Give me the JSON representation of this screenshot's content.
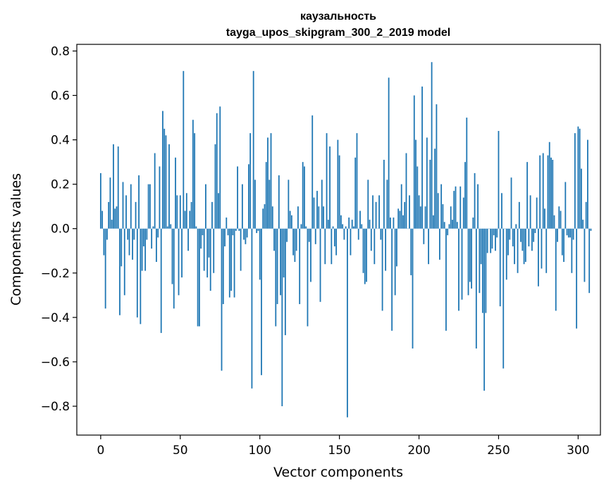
{
  "chart_data": {
    "type": "bar",
    "title": "каузальность",
    "subtitle": "tayga_upos_skipgram_300_2_2019 model",
    "xlabel": "Vector components",
    "ylabel": "Components values",
    "xlim": [
      -15,
      314
    ],
    "ylim": [
      -0.93,
      0.83
    ],
    "xticks": [
      0,
      50,
      100,
      150,
      200,
      250,
      300
    ],
    "xtick_labels": [
      "0",
      "50",
      "100",
      "150",
      "200",
      "250",
      "300"
    ],
    "yticks": [
      -0.8,
      -0.6,
      -0.4,
      -0.2,
      0.0,
      0.2,
      0.4,
      0.6,
      0.8
    ],
    "ytick_labels": [
      "−0.8",
      "−0.6",
      "−0.4",
      "−0.2",
      "0.0",
      "0.2",
      "0.4",
      "0.6",
      "0.8"
    ],
    "color": "#1f77b4",
    "values": [
      0.25,
      0.08,
      -0.12,
      -0.36,
      -0.05,
      0.12,
      0.23,
      0.04,
      0.38,
      0.09,
      0.1,
      0.37,
      -0.39,
      -0.17,
      0.21,
      -0.3,
      0.15,
      -0.05,
      -0.12,
      0.2,
      -0.14,
      -0.05,
      0.12,
      -0.4,
      0.24,
      -0.43,
      -0.19,
      -0.08,
      -0.19,
      -0.05,
      0.2,
      0.2,
      -0.09,
      0.01,
      0.34,
      -0.15,
      -0.04,
      0.28,
      -0.47,
      0.53,
      0.45,
      0.42,
      0.01,
      0.38,
      0.02,
      -0.25,
      -0.36,
      0.32,
      0.15,
      -0.3,
      0.15,
      -0.22,
      0.71,
      0.08,
      0.16,
      -0.1,
      0.08,
      0.12,
      0.49,
      0.43,
      0.01,
      -0.44,
      -0.44,
      -0.09,
      -0.03,
      -0.19,
      0.2,
      -0.22,
      -0.13,
      -0.28,
      0.12,
      -0.2,
      0.38,
      0.52,
      0.16,
      0.55,
      -0.64,
      -0.34,
      -0.08,
      0.05,
      -0.03,
      -0.31,
      -0.28,
      -0.03,
      -0.31,
      -0.01,
      0.28,
      -0.01,
      -0.19,
      0.2,
      -0.05,
      -0.07,
      -0.04,
      0.29,
      0.43,
      -0.72,
      0.71,
      0.22,
      -0.02,
      -0.01,
      -0.23,
      -0.66,
      0.09,
      0.11,
      0.3,
      0.41,
      0.22,
      0.43,
      0.1,
      -0.1,
      -0.44,
      -0.34,
      0.24,
      -0.3,
      -0.8,
      -0.22,
      -0.48,
      -0.06,
      0.22,
      0.08,
      0.06,
      -0.12,
      -0.15,
      -0.1,
      0.1,
      -0.34,
      0.02,
      0.3,
      0.28,
      0.01,
      -0.44,
      -0.06,
      -0.24,
      0.51,
      0.14,
      -0.07,
      0.17,
      0.1,
      -0.33,
      0.22,
      0.1,
      -0.16,
      0.43,
      0.04,
      0.37,
      -0.16,
      0.01,
      -0.08,
      -0.12,
      0.4,
      0.33,
      0.06,
      0.02,
      -0.05,
      0.01,
      -0.85,
      0.05,
      -0.12,
      0.04,
      0.01,
      0.32,
      0.43,
      -0.05,
      0.08,
      0.02,
      -0.2,
      -0.25,
      -0.24,
      0.22,
      0.04,
      -0.1,
      0.15,
      -0.16,
      0.12,
      0.0,
      0.15,
      -0.05,
      -0.37,
      0.31,
      -0.19,
      0.22,
      0.68,
      0.05,
      -0.46,
      0.05,
      -0.3,
      -0.17,
      0.09,
      0.08,
      0.2,
      0.06,
      0.12,
      0.34,
      0.0,
      0.15,
      -0.21,
      -0.54,
      0.6,
      0.4,
      0.28,
      0.15,
      0.1,
      0.64,
      -0.07,
      0.1,
      0.41,
      -0.16,
      0.31,
      0.75,
      0.06,
      0.36,
      0.56,
      0.16,
      -0.14,
      0.2,
      0.11,
      0.03,
      -0.46,
      -0.03,
      0.02,
      0.1,
      0.04,
      0.17,
      0.19,
      0.03,
      -0.37,
      0.19,
      -0.32,
      0.14,
      0.3,
      0.5,
      -0.3,
      -0.24,
      -0.27,
      0.05,
      0.25,
      -0.54,
      0.2,
      -0.29,
      -0.16,
      -0.38,
      -0.73,
      -0.38,
      -0.11,
      0.0,
      -0.11,
      -0.09,
      -0.03,
      -0.1,
      -0.04,
      0.44,
      -0.35,
      0.16,
      -0.63,
      0.0,
      -0.23,
      -0.12,
      -0.05,
      0.23,
      -0.08,
      -0.16,
      0.02,
      -0.2,
      0.12,
      -0.06,
      -0.1,
      -0.16,
      -0.15,
      0.3,
      -0.08,
      0.15,
      -0.1,
      -0.06,
      -0.02,
      0.14,
      -0.26,
      0.33,
      -0.18,
      0.34,
      0.09,
      -0.2,
      0.33,
      0.39,
      0.32,
      0.31,
      0.06,
      -0.37,
      -0.06,
      0.1,
      0.08,
      -0.12,
      -0.15,
      0.21,
      -0.03,
      -0.04,
      -0.04,
      -0.2,
      -0.05,
      0.43,
      -0.45,
      0.46,
      0.45,
      0.27,
      0.04,
      -0.24,
      0.12,
      0.4,
      -0.29,
      -0.01
    ]
  }
}
